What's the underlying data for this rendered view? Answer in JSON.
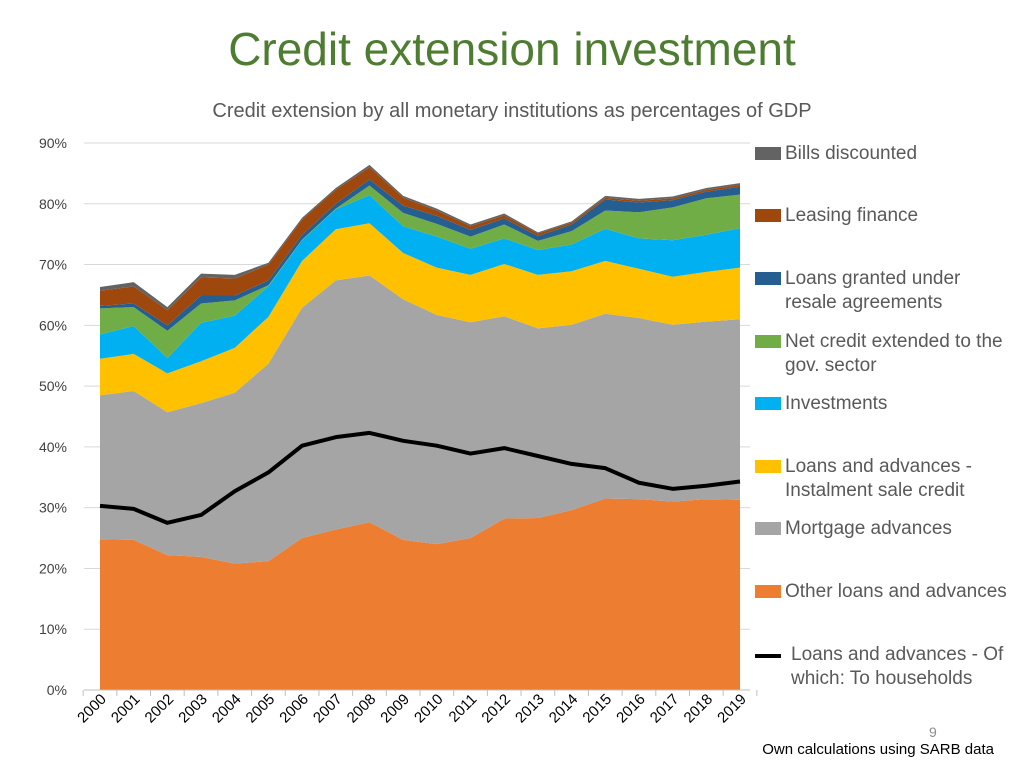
{
  "slide": {
    "title": "Credit extension investment",
    "page_number": "9",
    "source": "Own calculations using SARB data"
  },
  "colors": {
    "title": "#4e7d32",
    "other_loans": "#ed7d31",
    "mortgage": "#a5a5a5",
    "instalment": "#ffc000",
    "investments": "#00b0f0",
    "gov_sector": "#70ad47",
    "resale": "#255e91",
    "leasing": "#9e480e",
    "bills": "#636363",
    "households": "#000000"
  },
  "chart_data": {
    "type": "area",
    "title": "Credit extension by all monetary institutions as percentages of GDP",
    "xlabel": "",
    "ylabel": "",
    "ylim": [
      0,
      90
    ],
    "y_ticks": [
      "0%",
      "10%",
      "20%",
      "30%",
      "40%",
      "50%",
      "60%",
      "70%",
      "80%",
      "90%"
    ],
    "grid": true,
    "stacked": true,
    "legend_position": "right",
    "x": [
      "2000",
      "2001",
      "2002",
      "2003",
      "2004",
      "2005",
      "2006",
      "2007",
      "2008",
      "2009",
      "2010",
      "2011",
      "2012",
      "2013",
      "2014",
      "2015",
      "2016",
      "2017",
      "2018",
      "2019"
    ],
    "series": [
      {
        "name": "Other loans and advances",
        "color": "#ed7d31",
        "values": [
          24.8,
          24.7,
          22.2,
          21.9,
          20.8,
          21.2,
          25.0,
          26.4,
          27.6,
          24.7,
          24.0,
          25.0,
          28.2,
          28.3,
          29.6,
          31.5,
          31.4,
          31.0,
          31.4,
          31.3
        ]
      },
      {
        "name": "Mortgage advances",
        "color": "#a5a5a5",
        "values": [
          23.7,
          24.5,
          23.5,
          25.3,
          28.1,
          32.5,
          37.9,
          41.0,
          40.6,
          39.6,
          37.7,
          35.5,
          33.3,
          31.2,
          30.5,
          30.4,
          29.8,
          29.1,
          29.2,
          29.7
        ]
      },
      {
        "name": "Loans and advances - Instalment sale credit",
        "color": "#ffc000",
        "values": [
          6.0,
          6.1,
          6.4,
          6.9,
          7.4,
          7.7,
          7.7,
          8.4,
          8.6,
          7.6,
          7.8,
          7.8,
          8.6,
          8.8,
          8.8,
          8.7,
          8.1,
          7.9,
          8.2,
          8.5
        ]
      },
      {
        "name": "Investments",
        "color": "#00b0f0",
        "values": [
          4.0,
          4.6,
          2.5,
          6.3,
          5.3,
          5.0,
          3.4,
          3.3,
          4.6,
          4.4,
          5.1,
          4.3,
          4.2,
          4.1,
          4.4,
          5.3,
          5.0,
          6.0,
          6.1,
          6.5
        ]
      },
      {
        "name": "Net credit extended to the gov. sector",
        "color": "#70ad47",
        "values": [
          4.3,
          3.1,
          4.5,
          3.2,
          2.5,
          0.2,
          0.1,
          0.1,
          1.6,
          2.2,
          2.1,
          2.0,
          2.3,
          1.5,
          2.2,
          3.0,
          4.3,
          5.4,
          6.0,
          5.5
        ]
      },
      {
        "name": "Loans granted under resale agreements",
        "color": "#255e91",
        "values": [
          0.4,
          0.6,
          0.9,
          1.3,
          0.8,
          0.8,
          0.8,
          0.8,
          1.0,
          1.2,
          1.3,
          1.1,
          1.0,
          0.8,
          1.1,
          1.8,
          1.6,
          1.2,
          1.1,
          1.3
        ]
      },
      {
        "name": "Leasing finance",
        "color": "#9e480e",
        "values": [
          2.5,
          2.8,
          2.5,
          3.0,
          2.8,
          2.6,
          2.5,
          2.3,
          2.0,
          1.3,
          0.9,
          0.6,
          0.5,
          0.4,
          0.3,
          0.3,
          0.3,
          0.3,
          0.3,
          0.3
        ]
      },
      {
        "name": "Bills discounted",
        "color": "#636363",
        "values": [
          0.6,
          0.7,
          0.5,
          0.6,
          0.6,
          0.3,
          0.3,
          0.3,
          0.4,
          0.3,
          0.3,
          0.3,
          0.3,
          0.2,
          0.2,
          0.3,
          0.3,
          0.3,
          0.3,
          0.3
        ]
      }
    ],
    "line_series": {
      "name": "Loans and advances - Of which: To households",
      "color": "#000000",
      "values": [
        30.3,
        29.8,
        27.5,
        28.8,
        32.7,
        35.8,
        40.2,
        41.6,
        42.3,
        41.0,
        40.2,
        38.9,
        39.8,
        38.5,
        37.2,
        36.5,
        34.1,
        33.1,
        33.6,
        34.3
      ]
    },
    "legend": [
      {
        "label": "Bills discounted",
        "kind": "area",
        "color": "#636363"
      },
      {
        "label": "Leasing finance",
        "kind": "area",
        "color": "#9e480e"
      },
      {
        "label": "Loans granted under resale agreements",
        "kind": "area",
        "color": "#255e91"
      },
      {
        "label": "Net credit extended to the gov. sector",
        "kind": "area",
        "color": "#70ad47"
      },
      {
        "label": "Investments",
        "kind": "area",
        "color": "#00b0f0"
      },
      {
        "label": "Loans and advances - Instalment sale credit",
        "kind": "area",
        "color": "#ffc000"
      },
      {
        "label": "Mortgage advances",
        "kind": "area",
        "color": "#a5a5a5"
      },
      {
        "label": "Other loans and advances",
        "kind": "area",
        "color": "#ed7d31"
      },
      {
        "label": "Loans and advances - Of which: To households",
        "kind": "line",
        "color": "#000000"
      }
    ]
  }
}
